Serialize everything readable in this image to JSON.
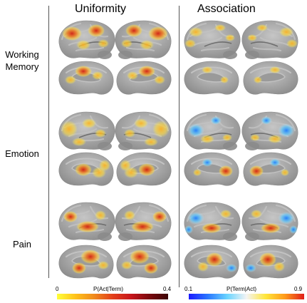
{
  "columns": {
    "left": "Uniformity",
    "right": "Association"
  },
  "rows": [
    {
      "label_lines": [
        "Working",
        "Memory"
      ]
    },
    {
      "label_lines": [
        "Emotion"
      ]
    },
    {
      "label_lines": [
        "Pain"
      ]
    }
  ],
  "colorbars": {
    "left": {
      "label": "P(Act|Term)",
      "min": "0",
      "max": "0.4",
      "stops": [
        "#ffff3a",
        "#ffc21a",
        "#f08a1c",
        "#e33f1a",
        "#c7151b",
        "#7a0a0e",
        "#3b0405"
      ]
    },
    "right": {
      "label": "P(Term|Act)",
      "min": "0.1",
      "max": "0.9",
      "stops": [
        "#1a1aff",
        "#2a78ff",
        "#6ad5ff",
        "#f4f4f4",
        "#ffe63a",
        "#ff9a1a",
        "#e01e1a"
      ]
    }
  },
  "colors": {
    "cortex": "#a9a9a9",
    "cortex_dark": "#8b8b8b",
    "cortex_light": "#c2c2c2",
    "divider": "#555555"
  }
}
